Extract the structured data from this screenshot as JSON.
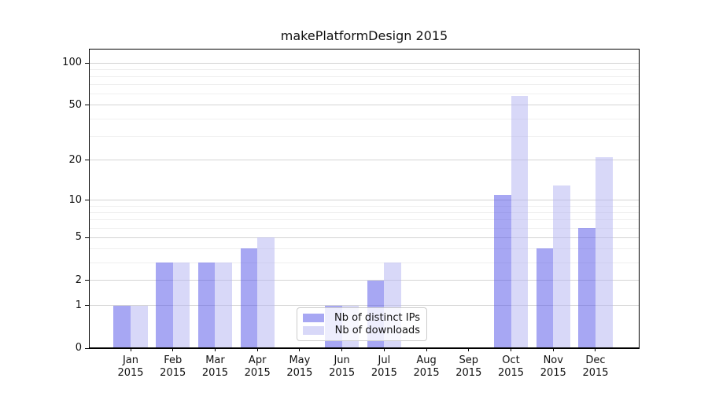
{
  "title": "makePlatformDesign 2015",
  "legend": {
    "items": [
      {
        "label": "Nb of distinct IPs",
        "swatch_color": "#a7a7f3"
      },
      {
        "label": "Nb of downloads",
        "swatch_color": "#d8d8f8"
      }
    ]
  },
  "chart_data": {
    "type": "bar",
    "title": "makePlatformDesign 2015",
    "categories": [
      "Jan",
      "Feb",
      "Mar",
      "Apr",
      "May",
      "Jun",
      "Jul",
      "Aug",
      "Sep",
      "Oct",
      "Nov",
      "Dec"
    ],
    "category_year": "2015",
    "series": [
      {
        "name": "Nb of distinct IPs",
        "color": "rgba(79,79,231,0.5)",
        "values": [
          1,
          3,
          3,
          4,
          0,
          1,
          2,
          0,
          0,
          11,
          4,
          6
        ]
      },
      {
        "name": "Nb of downloads",
        "color": "rgba(177,177,241,0.5)",
        "values": [
          1,
          3,
          3,
          5,
          0,
          1,
          3,
          0,
          0,
          58,
          13,
          21
        ]
      }
    ],
    "y_scale": "log10(value+1)",
    "y_ticks": [
      0,
      1,
      2,
      5,
      10,
      20,
      50,
      100
    ],
    "y_minor_gridlines": [
      3,
      4,
      6,
      7,
      8,
      9,
      30,
      40,
      60,
      70,
      80,
      90
    ],
    "ylim": [
      0,
      122
    ],
    "grid": "horizontal",
    "legend_location": "inside-lower-center"
  }
}
